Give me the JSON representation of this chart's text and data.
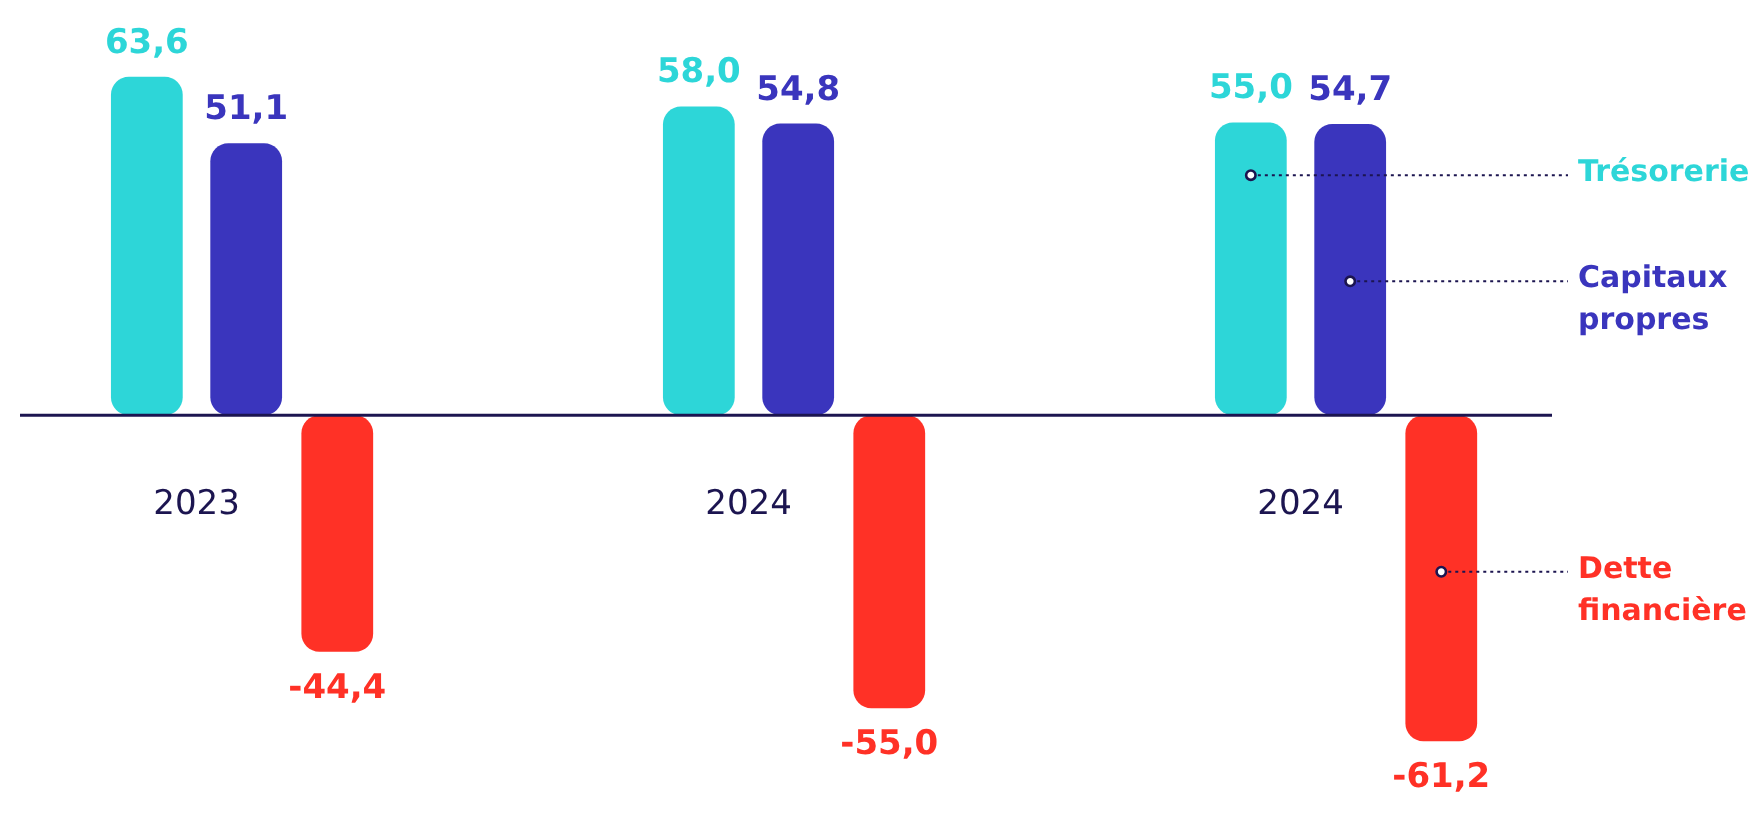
{
  "chart_data": {
    "type": "bar",
    "categories": [
      "2023",
      "2024",
      "2024"
    ],
    "series": [
      {
        "name": "Trésorerie",
        "color": "#2dd6d8",
        "values": [
          63.6,
          58.0,
          55.0
        ],
        "value_labels": [
          "63,6",
          "58,0",
          "55,0"
        ]
      },
      {
        "name": "Capitaux propres",
        "color": "#3a35bd",
        "values": [
          51.1,
          54.8,
          54.7
        ],
        "value_labels": [
          "51,1",
          "54,8",
          "54,7"
        ]
      },
      {
        "name": "Dette financière",
        "color": "#ff3126",
        "values": [
          -44.4,
          -55.0,
          -61.2
        ],
        "value_labels": [
          "-44,4",
          "-55,0",
          "-61,2"
        ]
      }
    ],
    "ylim": [
      -76,
      78
    ],
    "tick_labels": "x",
    "legend": "right"
  }
}
